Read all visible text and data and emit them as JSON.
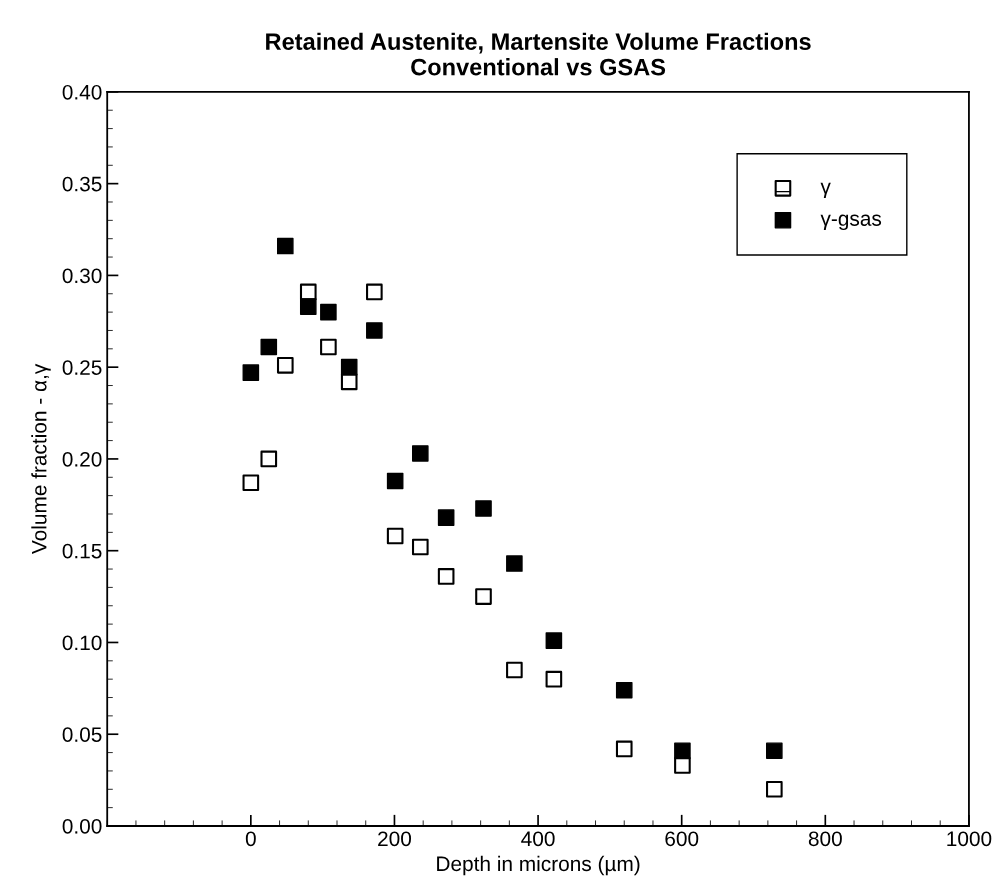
{
  "chart_data": {
    "type": "scatter",
    "title": "Retained Austenite, Martensite Volume Fractions\nConventional vs GSAS",
    "xlabel": "Depth in microns (µm)",
    "ylabel": "Volume fraction - α,γ",
    "xlim": [
      -200,
      1000
    ],
    "xticks": [
      0,
      200,
      400,
      600,
      800,
      1000
    ],
    "ylim": [
      0,
      0.4
    ],
    "yticks": [
      {
        "value": 0,
        "label": "0.00"
      },
      0.05,
      {
        "value": 0.1,
        "label": "0.10"
      },
      0.15,
      {
        "value": 0.2,
        "label": "0.20"
      },
      0.25,
      {
        "value": 0.3,
        "label": "0.30"
      },
      0.35,
      {
        "value": 0.4,
        "label": "0.40"
      }
    ],
    "grid": false,
    "legend": "top right",
    "marker": "square",
    "series": [
      {
        "name": "γ",
        "color": "#000000",
        "x": [
          0,
          25,
          48,
          80,
          108,
          137,
          172,
          201,
          236,
          272,
          324,
          367,
          422,
          520,
          601,
          729
        ],
        "values": [
          0.187,
          0.2,
          0.251,
          0.291,
          0.261,
          0.242,
          0.291,
          0.158,
          0.152,
          0.136,
          0.125,
          0.085,
          0.08,
          0.042,
          0.033,
          0.02
        ]
      },
      {
        "name": "γ-gsas",
        "color": "#000000",
        "x": [
          0,
          25,
          48,
          80,
          108,
          137,
          172,
          201,
          236,
          272,
          324,
          367,
          422,
          520,
          601,
          729
        ],
        "values": [
          0.247,
          0.261,
          0.316,
          0.283,
          0.28,
          0.25,
          0.27,
          0.188,
          0.203,
          0.168,
          0.173,
          0.143,
          0.101,
          0.074,
          0.041,
          0.041
        ]
      }
    ]
  }
}
